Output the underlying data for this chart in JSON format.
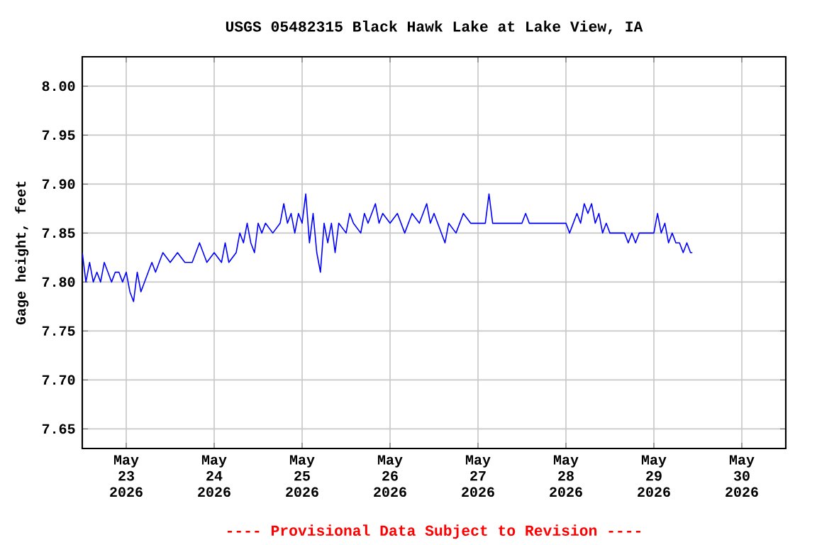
{
  "chart_data": {
    "type": "line",
    "title": "USGS 05482315 Black Hawk Lake at Lake View, IA",
    "ylabel": "Gage height, feet",
    "annotations": [
      "---- Provisional Data Subject to Revision ----"
    ],
    "xlim": [
      "2026-05-22T12:00",
      "2026-05-30T12:00"
    ],
    "ylim": [
      7.63,
      8.03
    ],
    "xticks": [
      {
        "value": "2026-05-23",
        "label": "May 23 2026"
      },
      {
        "value": "2026-05-24",
        "label": "May 24 2026"
      },
      {
        "value": "2026-05-25",
        "label": "May 25 2026"
      },
      {
        "value": "2026-05-26",
        "label": "May 26 2026"
      },
      {
        "value": "2026-05-27",
        "label": "May 27 2026"
      },
      {
        "value": "2026-05-28",
        "label": "May 28 2026"
      },
      {
        "value": "2026-05-29",
        "label": "May 29 2026"
      },
      {
        "value": "2026-05-30",
        "label": "May 30 2026"
      }
    ],
    "yticks": [
      {
        "value": 7.65,
        "label": "7.65"
      },
      {
        "value": 7.7,
        "label": "7.70"
      },
      {
        "value": 7.75,
        "label": "7.75"
      },
      {
        "value": 7.8,
        "label": "7.80"
      },
      {
        "value": 7.85,
        "label": "7.85"
      },
      {
        "value": 7.9,
        "label": "7.90"
      },
      {
        "value": 7.95,
        "label": "7.95"
      },
      {
        "value": 8.0,
        "label": "8.00"
      }
    ],
    "grid": true,
    "marker": "none",
    "line_style": "solid",
    "x": [
      "2026-05-22T12:00",
      "2026-05-22T13:00",
      "2026-05-22T14:00",
      "2026-05-22T15:00",
      "2026-05-22T16:00",
      "2026-05-22T17:00",
      "2026-05-22T18:00",
      "2026-05-22T19:00",
      "2026-05-22T20:00",
      "2026-05-22T21:00",
      "2026-05-22T22:00",
      "2026-05-22T23:00",
      "2026-05-23T00:00",
      "2026-05-23T01:00",
      "2026-05-23T02:00",
      "2026-05-23T03:00",
      "2026-05-23T04:00",
      "2026-05-23T05:00",
      "2026-05-23T06:00",
      "2026-05-23T07:00",
      "2026-05-23T08:00",
      "2026-05-23T09:00",
      "2026-05-23T10:00",
      "2026-05-23T12:00",
      "2026-05-23T14:00",
      "2026-05-23T16:00",
      "2026-05-23T18:00",
      "2026-05-23T20:00",
      "2026-05-23T22:00",
      "2026-05-24T00:00",
      "2026-05-24T02:00",
      "2026-05-24T03:00",
      "2026-05-24T04:00",
      "2026-05-24T06:00",
      "2026-05-24T07:00",
      "2026-05-24T08:00",
      "2026-05-24T09:00",
      "2026-05-24T10:00",
      "2026-05-24T11:00",
      "2026-05-24T12:00",
      "2026-05-24T13:00",
      "2026-05-24T14:00",
      "2026-05-24T16:00",
      "2026-05-24T18:00",
      "2026-05-24T19:00",
      "2026-05-24T20:00",
      "2026-05-24T21:00",
      "2026-05-24T22:00",
      "2026-05-24T23:00",
      "2026-05-25T00:00",
      "2026-05-25T01:00",
      "2026-05-25T02:00",
      "2026-05-25T03:00",
      "2026-05-25T04:00",
      "2026-05-25T05:00",
      "2026-05-25T06:00",
      "2026-05-25T07:00",
      "2026-05-25T08:00",
      "2026-05-25T09:00",
      "2026-05-25T10:00",
      "2026-05-25T12:00",
      "2026-05-25T13:00",
      "2026-05-25T14:00",
      "2026-05-25T16:00",
      "2026-05-25T17:00",
      "2026-05-25T18:00",
      "2026-05-25T20:00",
      "2026-05-25T21:00",
      "2026-05-25T22:00",
      "2026-05-26T00:00",
      "2026-05-26T02:00",
      "2026-05-26T04:00",
      "2026-05-26T06:00",
      "2026-05-26T08:00",
      "2026-05-26T10:00",
      "2026-05-26T11:00",
      "2026-05-26T12:00",
      "2026-05-26T14:00",
      "2026-05-26T15:00",
      "2026-05-26T16:00",
      "2026-05-26T18:00",
      "2026-05-26T20:00",
      "2026-05-26T22:00",
      "2026-05-27T00:00",
      "2026-05-27T02:00",
      "2026-05-27T03:00",
      "2026-05-27T04:00",
      "2026-05-27T08:00",
      "2026-05-27T12:00",
      "2026-05-27T13:00",
      "2026-05-27T14:00",
      "2026-05-27T18:00",
      "2026-05-28T00:00",
      "2026-05-28T01:00",
      "2026-05-28T02:00",
      "2026-05-28T03:00",
      "2026-05-28T04:00",
      "2026-05-28T05:00",
      "2026-05-28T06:00",
      "2026-05-28T07:00",
      "2026-05-28T08:00",
      "2026-05-28T09:00",
      "2026-05-28T10:00",
      "2026-05-28T11:00",
      "2026-05-28T12:00",
      "2026-05-28T16:00",
      "2026-05-28T17:00",
      "2026-05-28T18:00",
      "2026-05-28T19:00",
      "2026-05-28T20:00",
      "2026-05-28T22:00",
      "2026-05-29T00:00",
      "2026-05-29T01:00",
      "2026-05-29T02:00",
      "2026-05-29T03:00",
      "2026-05-29T04:00",
      "2026-05-29T05:00",
      "2026-05-29T06:00",
      "2026-05-29T07:00",
      "2026-05-29T08:00",
      "2026-05-29T09:00",
      "2026-05-29T10:00",
      "2026-05-29T10:30"
    ],
    "series": [
      {
        "color": "#0000ff",
        "values": [
          7.83,
          7.8,
          7.82,
          7.8,
          7.81,
          7.8,
          7.82,
          7.81,
          7.8,
          7.81,
          7.81,
          7.8,
          7.81,
          7.79,
          7.78,
          7.81,
          7.79,
          7.8,
          7.81,
          7.82,
          7.81,
          7.82,
          7.83,
          7.82,
          7.83,
          7.82,
          7.82,
          7.84,
          7.82,
          7.83,
          7.82,
          7.84,
          7.82,
          7.83,
          7.85,
          7.84,
          7.86,
          7.84,
          7.83,
          7.86,
          7.85,
          7.86,
          7.85,
          7.86,
          7.88,
          7.86,
          7.87,
          7.85,
          7.87,
          7.86,
          7.89,
          7.84,
          7.87,
          7.83,
          7.81,
          7.86,
          7.84,
          7.86,
          7.83,
          7.86,
          7.85,
          7.87,
          7.86,
          7.85,
          7.87,
          7.86,
          7.88,
          7.86,
          7.87,
          7.86,
          7.87,
          7.85,
          7.87,
          7.86,
          7.88,
          7.86,
          7.87,
          7.85,
          7.84,
          7.86,
          7.85,
          7.87,
          7.86,
          7.86,
          7.86,
          7.89,
          7.86,
          7.86,
          7.86,
          7.87,
          7.86,
          7.86,
          7.86,
          7.85,
          7.86,
          7.87,
          7.86,
          7.88,
          7.87,
          7.88,
          7.86,
          7.87,
          7.85,
          7.86,
          7.85,
          7.85,
          7.84,
          7.85,
          7.84,
          7.85,
          7.85,
          7.85,
          7.87,
          7.85,
          7.86,
          7.84,
          7.85,
          7.84,
          7.84,
          7.83,
          7.84,
          7.83,
          7.83
        ]
      }
    ]
  }
}
